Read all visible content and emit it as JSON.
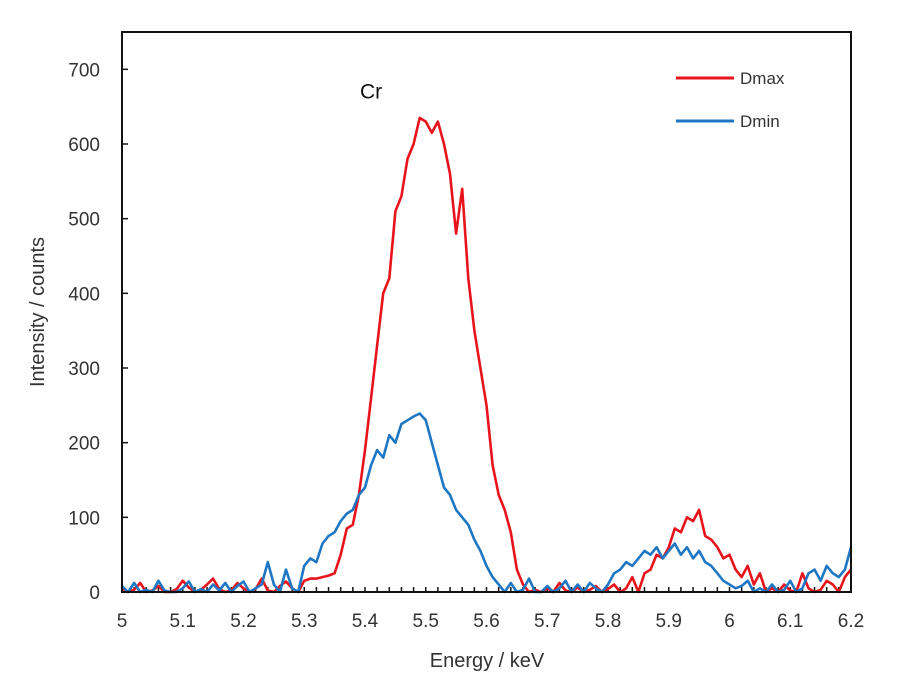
{
  "chart_data": {
    "type": "line",
    "title": "",
    "xlabel": "Energy / keV",
    "ylabel": "Intensity / counts",
    "xlim": [
      5.0,
      6.2
    ],
    "ylim": [
      0,
      750
    ],
    "x_ticks": [
      5,
      5.1,
      5.2,
      5.3,
      5.4,
      5.5,
      5.6,
      5.7,
      5.8,
      5.9,
      6,
      6.1,
      6.2
    ],
    "x_tick_labels": [
      "5",
      "5.1",
      "5.2",
      "5.3",
      "5.4",
      "5.5",
      "5.6",
      "5.7",
      "5.8",
      "5.9",
      "6",
      "6.1",
      "6.2"
    ],
    "x_minor_step": 0.02,
    "y_ticks": [
      0,
      100,
      200,
      300,
      400,
      500,
      600,
      700
    ],
    "y_tick_labels": [
      "0",
      "100",
      "200",
      "300",
      "400",
      "500",
      "600",
      "700"
    ],
    "grid": false,
    "legend_position": "top-right",
    "annotations": [
      {
        "text": "Cr",
        "x": 5.41,
        "y": 670
      }
    ],
    "x_start": 5.0,
    "x_step": 0.01,
    "series": [
      {
        "name": "Dmax",
        "color": "#e8141c",
        "values": [
          5,
          0,
          3,
          12,
          0,
          2,
          8,
          0,
          0,
          4,
          15,
          6,
          0,
          3,
          10,
          18,
          4,
          0,
          2,
          12,
          5,
          0,
          4,
          18,
          2,
          0,
          8,
          14,
          5,
          0,
          15,
          18,
          18,
          20,
          22,
          25,
          50,
          85,
          90,
          130,
          190,
          260,
          330,
          400,
          420,
          510,
          530,
          580,
          600,
          635,
          630,
          615,
          630,
          600,
          560,
          480,
          540,
          420,
          350,
          300,
          250,
          170,
          130,
          110,
          80,
          30,
          10,
          0,
          3,
          0,
          5,
          0,
          12,
          2,
          0,
          6,
          0,
          3,
          8,
          0,
          4,
          10,
          0,
          5,
          20,
          0,
          25,
          30,
          50,
          45,
          60,
          85,
          80,
          100,
          95,
          110,
          75,
          70,
          60,
          45,
          50,
          30,
          20,
          35,
          10,
          25,
          0,
          5,
          0,
          10,
          2,
          0,
          25,
          5,
          0,
          3,
          15,
          10,
          0,
          20,
          30
        ]
      },
      {
        "name": "Dmin",
        "color": "#1f77c4",
        "values": [
          8,
          0,
          12,
          0,
          3,
          0,
          15,
          2,
          0,
          0,
          5,
          14,
          0,
          4,
          0,
          10,
          2,
          12,
          0,
          8,
          14,
          0,
          5,
          10,
          40,
          10,
          0,
          30,
          5,
          0,
          35,
          45,
          40,
          65,
          75,
          80,
          95,
          105,
          110,
          130,
          140,
          170,
          190,
          180,
          210,
          200,
          225,
          230,
          235,
          239,
          230,
          200,
          170,
          140,
          130,
          110,
          100,
          90,
          70,
          55,
          35,
          20,
          10,
          0,
          12,
          0,
          3,
          18,
          0,
          0,
          8,
          0,
          5,
          15,
          0,
          10,
          0,
          12,
          5,
          0,
          10,
          25,
          30,
          40,
          35,
          45,
          55,
          50,
          60,
          45,
          55,
          65,
          50,
          60,
          45,
          55,
          40,
          35,
          25,
          15,
          10,
          5,
          8,
          15,
          0,
          5,
          0,
          10,
          0,
          3,
          15,
          0,
          5,
          25,
          30,
          15,
          35,
          25,
          20,
          30,
          60
        ]
      }
    ]
  }
}
